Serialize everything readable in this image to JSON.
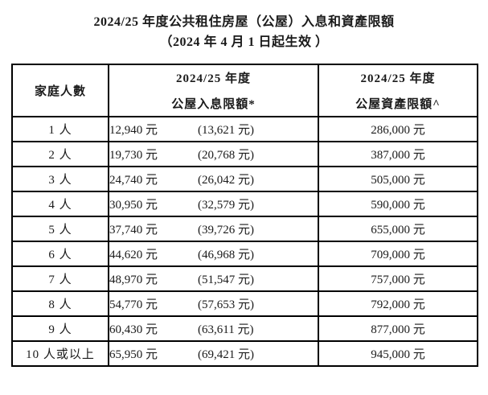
{
  "colors": {
    "text": "#1a1a1a",
    "border": "#000000",
    "background": "#ffffff"
  },
  "title": {
    "line1": "2024/25 年度公共租住房屋（公屋）入息和資產限額",
    "line2": "（2024 年 4 月 1 日起生效 ）"
  },
  "table": {
    "headers": {
      "household": "家庭人數",
      "income_line1": "2024/25 年度",
      "income_line2": "公屋入息限額*",
      "asset_line1": "2024/25 年度",
      "asset_line2": "公屋資產限額^"
    },
    "rows": [
      {
        "household": "1 人",
        "income": "12,940 元",
        "income_bracket": "(13,621 元)",
        "asset": "286,000 元"
      },
      {
        "household": "2 人",
        "income": "19,730 元",
        "income_bracket": "(20,768 元)",
        "asset": "387,000 元"
      },
      {
        "household": "3 人",
        "income": "24,740 元",
        "income_bracket": "(26,042 元)",
        "asset": "505,000 元"
      },
      {
        "household": "4 人",
        "income": "30,950 元",
        "income_bracket": "(32,579 元)",
        "asset": "590,000 元"
      },
      {
        "household": "5 人",
        "income": "37,740 元",
        "income_bracket": "(39,726 元)",
        "asset": "655,000 元"
      },
      {
        "household": "6 人",
        "income": "44,620 元",
        "income_bracket": "(46,968 元)",
        "asset": "709,000 元"
      },
      {
        "household": "7 人",
        "income": "48,970 元",
        "income_bracket": "(51,547 元)",
        "asset": "757,000 元"
      },
      {
        "household": "8 人",
        "income": "54,770 元",
        "income_bracket": "(57,653 元)",
        "asset": "792,000 元"
      },
      {
        "household": "9 人",
        "income": "60,430 元",
        "income_bracket": "(63,611 元)",
        "asset": "877,000 元"
      },
      {
        "household": "10 人或以上",
        "income": "65,950 元",
        "income_bracket": "(69,421 元)",
        "asset": "945,000 元"
      }
    ]
  }
}
